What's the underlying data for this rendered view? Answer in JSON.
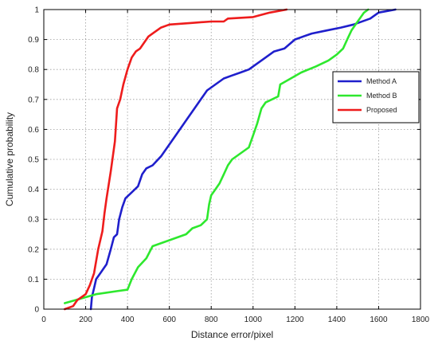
{
  "chart_data": {
    "type": "line",
    "title": "",
    "xlabel": "Distance error/pixel",
    "ylabel": "Cumulative probability",
    "xlim": [
      0,
      1800
    ],
    "ylim": [
      0,
      1
    ],
    "x_ticks": [
      0,
      200,
      400,
      600,
      800,
      1000,
      1200,
      1400,
      1600,
      1800
    ],
    "x_tick_labels": [
      "0",
      "200",
      "400",
      "600",
      "800",
      "1000",
      "1200",
      "1400",
      "1600",
      "1800"
    ],
    "y_ticks": [
      0,
      0.1,
      0.2,
      0.3,
      0.4,
      0.5,
      0.6,
      0.7,
      0.8,
      0.9,
      1
    ],
    "y_tick_labels": [
      "0",
      "0.1",
      "0.2",
      "0.3",
      "0.4",
      "0.5",
      "0.6",
      "0.7",
      "0.8",
      "0.9",
      "1"
    ],
    "grid": true,
    "legend_position": "right",
    "series": [
      {
        "name": "Method A",
        "color": "#1f1fcc",
        "points": [
          [
            225,
            0
          ],
          [
            230,
            0.04
          ],
          [
            240,
            0.07
          ],
          [
            250,
            0.1
          ],
          [
            270,
            0.12
          ],
          [
            300,
            0.15
          ],
          [
            320,
            0.2
          ],
          [
            335,
            0.24
          ],
          [
            350,
            0.25
          ],
          [
            360,
            0.3
          ],
          [
            375,
            0.34
          ],
          [
            390,
            0.37
          ],
          [
            420,
            0.39
          ],
          [
            450,
            0.41
          ],
          [
            470,
            0.45
          ],
          [
            490,
            0.47
          ],
          [
            520,
            0.48
          ],
          [
            560,
            0.51
          ],
          [
            600,
            0.55
          ],
          [
            640,
            0.59
          ],
          [
            680,
            0.63
          ],
          [
            720,
            0.67
          ],
          [
            750,
            0.7
          ],
          [
            780,
            0.73
          ],
          [
            820,
            0.75
          ],
          [
            860,
            0.77
          ],
          [
            900,
            0.78
          ],
          [
            940,
            0.79
          ],
          [
            980,
            0.8
          ],
          [
            1020,
            0.82
          ],
          [
            1060,
            0.84
          ],
          [
            1100,
            0.86
          ],
          [
            1150,
            0.87
          ],
          [
            1200,
            0.9
          ],
          [
            1240,
            0.91
          ],
          [
            1280,
            0.92
          ],
          [
            1350,
            0.93
          ],
          [
            1420,
            0.94
          ],
          [
            1480,
            0.95
          ],
          [
            1560,
            0.97
          ],
          [
            1600,
            0.99
          ],
          [
            1680,
            1
          ]
        ]
      },
      {
        "name": "Method B",
        "color": "#2ee82e",
        "points": [
          [
            100,
            0.02
          ],
          [
            150,
            0.03
          ],
          [
            200,
            0.04
          ],
          [
            250,
            0.05
          ],
          [
            300,
            0.055
          ],
          [
            350,
            0.06
          ],
          [
            400,
            0.065
          ],
          [
            420,
            0.1
          ],
          [
            450,
            0.14
          ],
          [
            490,
            0.17
          ],
          [
            520,
            0.21
          ],
          [
            600,
            0.23
          ],
          [
            680,
            0.25
          ],
          [
            710,
            0.27
          ],
          [
            750,
            0.28
          ],
          [
            780,
            0.3
          ],
          [
            790,
            0.35
          ],
          [
            800,
            0.38
          ],
          [
            820,
            0.4
          ],
          [
            840,
            0.42
          ],
          [
            860,
            0.45
          ],
          [
            880,
            0.48
          ],
          [
            900,
            0.5
          ],
          [
            940,
            0.52
          ],
          [
            980,
            0.54
          ],
          [
            1000,
            0.58
          ],
          [
            1020,
            0.62
          ],
          [
            1040,
            0.67
          ],
          [
            1060,
            0.69
          ],
          [
            1090,
            0.7
          ],
          [
            1120,
            0.71
          ],
          [
            1130,
            0.75
          ],
          [
            1180,
            0.77
          ],
          [
            1230,
            0.79
          ],
          [
            1300,
            0.81
          ],
          [
            1360,
            0.83
          ],
          [
            1400,
            0.85
          ],
          [
            1430,
            0.87
          ],
          [
            1450,
            0.9
          ],
          [
            1470,
            0.93
          ],
          [
            1490,
            0.95
          ],
          [
            1510,
            0.97
          ],
          [
            1530,
            0.99
          ],
          [
            1550,
            1
          ]
        ]
      },
      {
        "name": "Proposed",
        "color": "#ee1c1c",
        "points": [
          [
            100,
            0
          ],
          [
            140,
            0.01
          ],
          [
            160,
            0.03
          ],
          [
            180,
            0.04
          ],
          [
            200,
            0.05
          ],
          [
            220,
            0.08
          ],
          [
            240,
            0.12
          ],
          [
            260,
            0.2
          ],
          [
            280,
            0.26
          ],
          [
            290,
            0.32
          ],
          [
            300,
            0.37
          ],
          [
            320,
            0.46
          ],
          [
            340,
            0.56
          ],
          [
            350,
            0.67
          ],
          [
            365,
            0.7
          ],
          [
            380,
            0.75
          ],
          [
            400,
            0.8
          ],
          [
            420,
            0.84
          ],
          [
            440,
            0.86
          ],
          [
            460,
            0.87
          ],
          [
            480,
            0.89
          ],
          [
            500,
            0.91
          ],
          [
            520,
            0.92
          ],
          [
            560,
            0.94
          ],
          [
            600,
            0.95
          ],
          [
            700,
            0.955
          ],
          [
            800,
            0.96
          ],
          [
            860,
            0.96
          ],
          [
            880,
            0.97
          ],
          [
            1000,
            0.975
          ],
          [
            1080,
            0.99
          ],
          [
            1160,
            1
          ]
        ]
      }
    ]
  }
}
